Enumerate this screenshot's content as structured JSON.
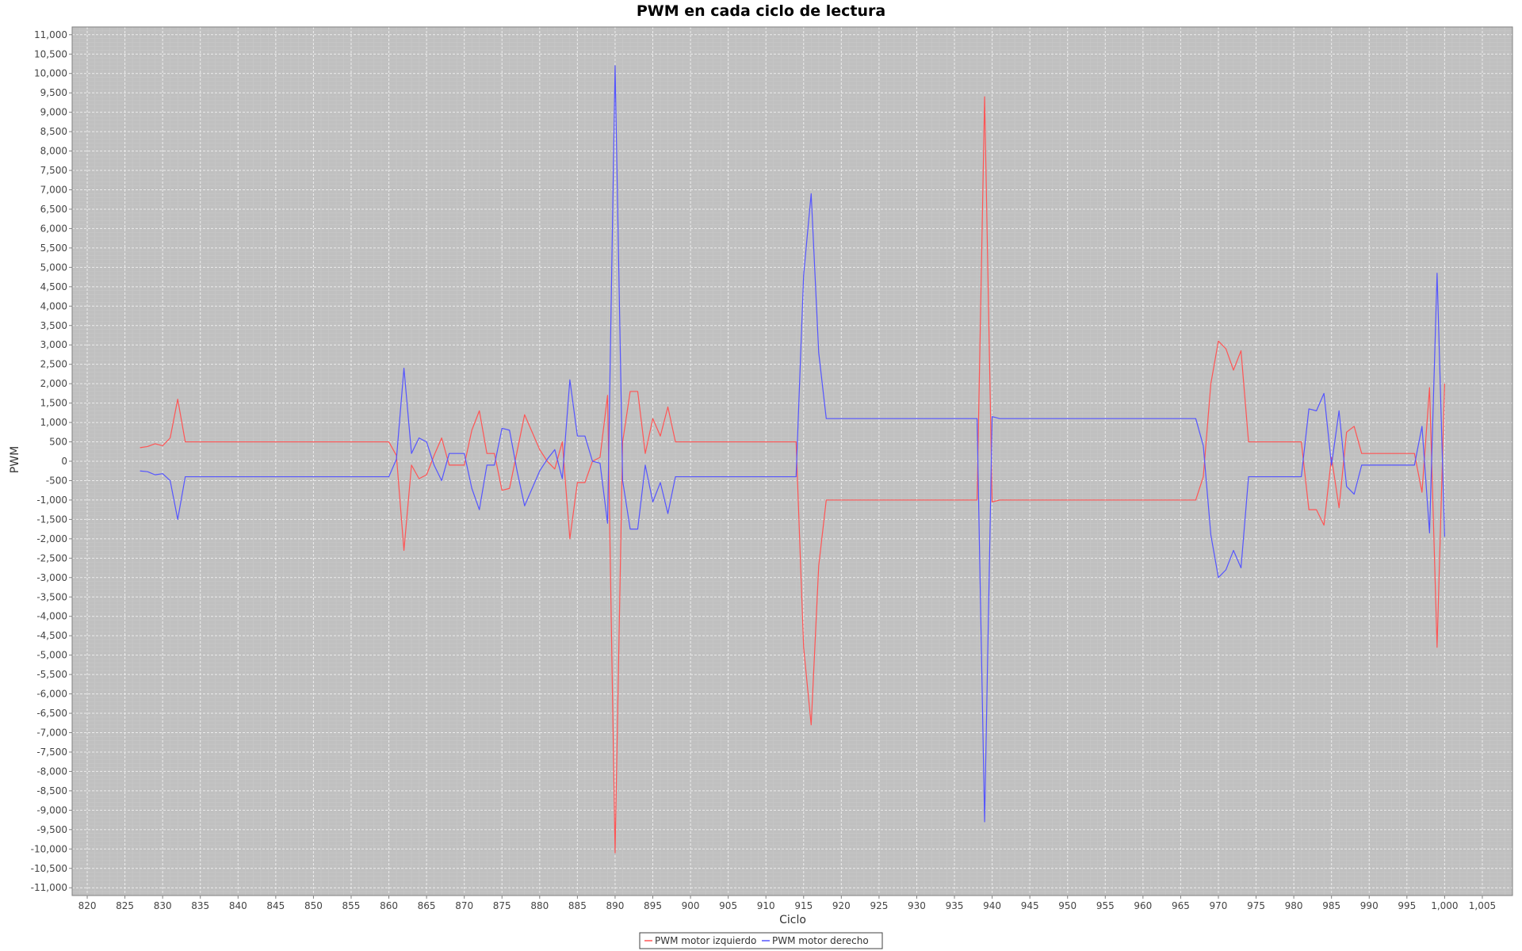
{
  "chart_data": {
    "type": "line",
    "title": "PWM en cada ciclo de lectura",
    "xlabel": "Ciclo",
    "ylabel": "PWM",
    "xlim": [
      818,
      1009
    ],
    "ylim": [
      -11200,
      11200
    ],
    "x_ticks": [
      820,
      825,
      830,
      835,
      840,
      845,
      850,
      855,
      860,
      865,
      870,
      875,
      880,
      885,
      890,
      895,
      900,
      905,
      910,
      915,
      920,
      925,
      930,
      935,
      940,
      945,
      950,
      955,
      960,
      965,
      970,
      975,
      980,
      985,
      990,
      995,
      1000,
      1005
    ],
    "x_tick_labels": [
      "820",
      "825",
      "830",
      "835",
      "840",
      "845",
      "850",
      "855",
      "860",
      "865",
      "870",
      "875",
      "880",
      "885",
      "890",
      "895",
      "900",
      "905",
      "910",
      "915",
      "920",
      "925",
      "930",
      "935",
      "940",
      "945",
      "950",
      "955",
      "960",
      "965",
      "970",
      "975",
      "980",
      "985",
      "990",
      "995",
      "1,000",
      "1,005"
    ],
    "y_ticks": [
      11000,
      10500,
      10000,
      9500,
      9000,
      8500,
      8000,
      7500,
      7000,
      6500,
      6000,
      5500,
      5000,
      4500,
      4000,
      3500,
      3000,
      2500,
      2000,
      1500,
      1000,
      500,
      0,
      -500,
      -1000,
      -1500,
      -2000,
      -2500,
      -3000,
      -3500,
      -4000,
      -4500,
      -5000,
      -5500,
      -6000,
      -6500,
      -7000,
      -7500,
      -8000,
      -8500,
      -9000,
      -9500,
      -10000,
      -10500,
      -11000
    ],
    "y_tick_labels": [
      "11,000",
      "10,500",
      "10,000",
      "9,500",
      "9,000",
      "8,500",
      "8,000",
      "7,500",
      "7,000",
      "6,500",
      "6,000",
      "5,500",
      "5,000",
      "4,500",
      "4,000",
      "3,500",
      "3,000",
      "2,500",
      "2,000",
      "1,500",
      "1,000",
      "500",
      "0",
      "-500",
      "-1,000",
      "-1,500",
      "-2,000",
      "-2,500",
      "-3,000",
      "-3,500",
      "-4,000",
      "-4,500",
      "-5,000",
      "-5,500",
      "-6,000",
      "-6,500",
      "-7,000",
      "-7,500",
      "-8,000",
      "-8,500",
      "-9,000",
      "-9,500",
      "-10,000",
      "-10,500",
      "-11,000"
    ],
    "grid": true,
    "legend_position": "bottom-center",
    "background_color": "#c0c0c0",
    "series": [
      {
        "name": "PWM motor izquierdo",
        "color": "#ff5555",
        "points": [
          [
            827,
            350
          ],
          [
            828,
            380
          ],
          [
            829,
            450
          ],
          [
            830,
            400
          ],
          [
            831,
            600
          ],
          [
            832,
            1600
          ],
          [
            833,
            500
          ],
          [
            834,
            500
          ],
          [
            860,
            500
          ],
          [
            861,
            150
          ],
          [
            862,
            -2300
          ],
          [
            863,
            -100
          ],
          [
            864,
            -450
          ],
          [
            865,
            -350
          ],
          [
            866,
            150
          ],
          [
            867,
            600
          ],
          [
            868,
            -100
          ],
          [
            869,
            -100
          ],
          [
            870,
            -100
          ],
          [
            871,
            800
          ],
          [
            872,
            1300
          ],
          [
            873,
            200
          ],
          [
            874,
            200
          ],
          [
            875,
            -750
          ],
          [
            876,
            -700
          ],
          [
            877,
            250
          ],
          [
            878,
            1200
          ],
          [
            879,
            750
          ],
          [
            880,
            300
          ],
          [
            881,
            0
          ],
          [
            882,
            -200
          ],
          [
            883,
            500
          ],
          [
            884,
            -2000
          ],
          [
            885,
            -550
          ],
          [
            886,
            -550
          ],
          [
            887,
            0
          ],
          [
            888,
            100
          ],
          [
            889,
            1700
          ],
          [
            890,
            -10100
          ],
          [
            891,
            500
          ],
          [
            892,
            1800
          ],
          [
            893,
            1800
          ],
          [
            894,
            200
          ],
          [
            895,
            1100
          ],
          [
            896,
            650
          ],
          [
            897,
            1400
          ],
          [
            898,
            500
          ],
          [
            914,
            500
          ],
          [
            915,
            -4800
          ],
          [
            916,
            -6800
          ],
          [
            917,
            -2700
          ],
          [
            918,
            -1000
          ],
          [
            938,
            -1000
          ],
          [
            939,
            9400
          ],
          [
            940,
            -1050
          ],
          [
            941,
            -1000
          ],
          [
            967,
            -1000
          ],
          [
            968,
            -400
          ],
          [
            969,
            2000
          ],
          [
            970,
            3100
          ],
          [
            971,
            2900
          ],
          [
            972,
            2350
          ],
          [
            973,
            2850
          ],
          [
            974,
            500
          ],
          [
            981,
            500
          ],
          [
            982,
            -1250
          ],
          [
            983,
            -1250
          ],
          [
            984,
            -1650
          ],
          [
            985,
            100
          ],
          [
            986,
            -1200
          ],
          [
            987,
            750
          ],
          [
            988,
            900
          ],
          [
            989,
            200
          ],
          [
            996,
            200
          ],
          [
            997,
            -800
          ],
          [
            998,
            1900
          ],
          [
            999,
            -4800
          ],
          [
            1000,
            2000
          ]
        ]
      },
      {
        "name": "PWM motor derecho",
        "color": "#5555ff",
        "points": [
          [
            827,
            -250
          ],
          [
            828,
            -270
          ],
          [
            829,
            -350
          ],
          [
            830,
            -320
          ],
          [
            831,
            -500
          ],
          [
            832,
            -1500
          ],
          [
            833,
            -400
          ],
          [
            860,
            -400
          ],
          [
            861,
            50
          ],
          [
            862,
            2400
          ],
          [
            863,
            200
          ],
          [
            864,
            600
          ],
          [
            865,
            500
          ],
          [
            866,
            -100
          ],
          [
            867,
            -500
          ],
          [
            868,
            200
          ],
          [
            869,
            200
          ],
          [
            870,
            200
          ],
          [
            871,
            -700
          ],
          [
            872,
            -1250
          ],
          [
            873,
            -100
          ],
          [
            874,
            -100
          ],
          [
            875,
            850
          ],
          [
            876,
            800
          ],
          [
            877,
            -250
          ],
          [
            878,
            -1150
          ],
          [
            879,
            -700
          ],
          [
            880,
            -250
          ],
          [
            881,
            50
          ],
          [
            882,
            300
          ],
          [
            883,
            -450
          ],
          [
            884,
            2100
          ],
          [
            885,
            650
          ],
          [
            886,
            650
          ],
          [
            887,
            0
          ],
          [
            888,
            -50
          ],
          [
            889,
            -1600
          ],
          [
            890,
            10200
          ],
          [
            891,
            -500
          ],
          [
            892,
            -1750
          ],
          [
            893,
            -1750
          ],
          [
            894,
            -100
          ],
          [
            895,
            -1050
          ],
          [
            896,
            -550
          ],
          [
            897,
            -1350
          ],
          [
            898,
            -400
          ],
          [
            914,
            -400
          ],
          [
            915,
            4800
          ],
          [
            916,
            6900
          ],
          [
            917,
            2800
          ],
          [
            918,
            1100
          ],
          [
            938,
            1100
          ],
          [
            939,
            -9300
          ],
          [
            940,
            1150
          ],
          [
            941,
            1100
          ],
          [
            967,
            1100
          ],
          [
            968,
            400
          ],
          [
            969,
            -1900
          ],
          [
            970,
            -3000
          ],
          [
            971,
            -2800
          ],
          [
            972,
            -2300
          ],
          [
            973,
            -2750
          ],
          [
            974,
            -400
          ],
          [
            981,
            -400
          ],
          [
            982,
            1350
          ],
          [
            983,
            1300
          ],
          [
            984,
            1750
          ],
          [
            985,
            -100
          ],
          [
            986,
            1300
          ],
          [
            987,
            -650
          ],
          [
            988,
            -850
          ],
          [
            989,
            -100
          ],
          [
            996,
            -100
          ],
          [
            997,
            900
          ],
          [
            998,
            -1850
          ],
          [
            999,
            4850
          ],
          [
            1000,
            -1950
          ]
        ]
      }
    ]
  }
}
